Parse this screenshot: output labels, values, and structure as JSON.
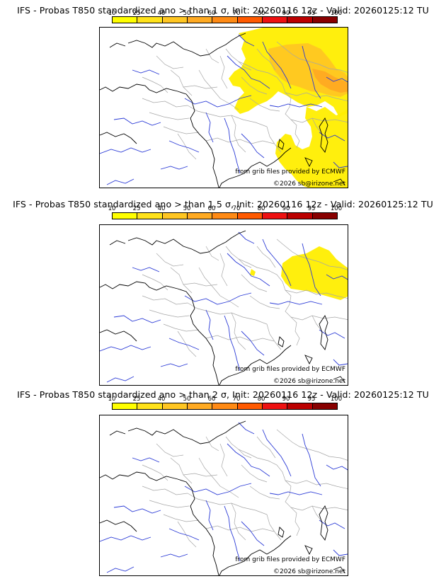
{
  "panels": [
    {
      "title": "IFS - Probas T850  standardized ano > than 1 σ, Init: 20260116 12z - Valid: 20260125:12 TU",
      "threshold_sigma": 1,
      "overlay": "strong"
    },
    {
      "title": "IFS - Probas T850  standardized ano > than 1.5 σ, Init: 20260116 12z - Valid: 20260125:12 TU",
      "threshold_sigma": 1.5,
      "overlay": "medium"
    },
    {
      "title": "IFS - Probas T850  standardized ano > than 2 σ, Init: 20260116 12z - Valid: 20260125:12 TU",
      "threshold_sigma": 2,
      "overlay": "none"
    }
  ],
  "colorbar": {
    "labels": [
      "10",
      "25",
      "40",
      "50",
      "60",
      "70",
      "80",
      "90",
      "95",
      "100"
    ],
    "colors": [
      "#ffff00",
      "#ffe21a",
      "#ffc622",
      "#ffaa22",
      "#ff8a14",
      "#ff5a00",
      "#ee1111",
      "#bb0000",
      "#880000"
    ]
  },
  "credits": {
    "source": "from grib files provided by ECMWF",
    "copyright": "©2026 sb@irizone.net"
  },
  "colors": {
    "rivers": "#2a3ad6",
    "borders": "#a6a6a6",
    "coast": "#000000"
  }
}
